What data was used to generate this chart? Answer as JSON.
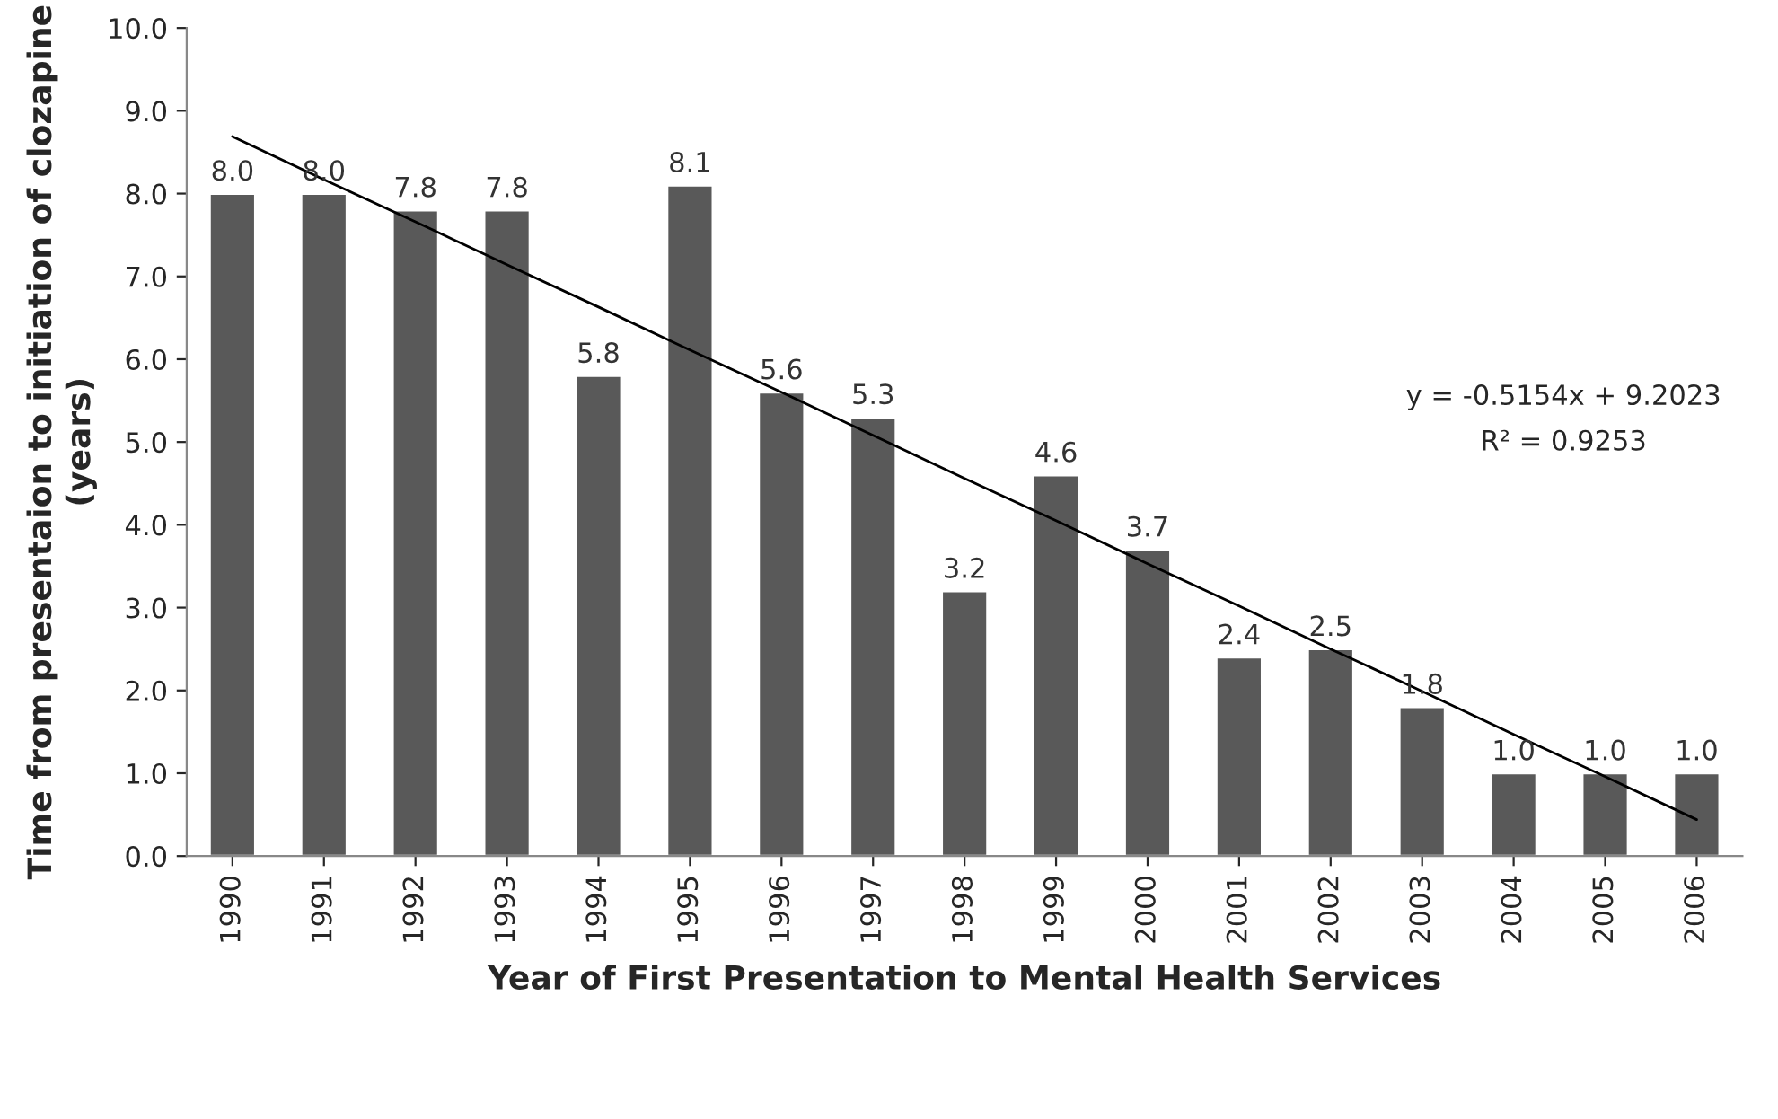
{
  "chart_data": {
    "type": "bar",
    "xlabel": "Year of First Presentation to Mental Health Services",
    "ylabel": "Time from presentaion to initiation of clozapine\n(years)",
    "categories": [
      "1990",
      "1991",
      "1992",
      "1993",
      "1994",
      "1995",
      "1996",
      "1997",
      "1998",
      "1999",
      "2000",
      "2001",
      "2002",
      "2003",
      "2004",
      "2005",
      "2006"
    ],
    "series": [
      {
        "color": "#595959",
        "values": [
          8.0,
          8.0,
          7.8,
          7.8,
          5.8,
          8.1,
          5.6,
          5.3,
          3.2,
          4.6,
          3.7,
          2.4,
          2.5,
          1.8,
          1.0,
          1.0,
          1.0
        ],
        "value_labels": [
          "8.0",
          "8.0",
          "7.8",
          "7.8",
          "5.8",
          "8.1",
          "5.6",
          "5.3",
          "3.2",
          "4.6",
          "3.7",
          "2.4",
          "2.5",
          "1.8",
          "1.0",
          "1.0",
          "1.0"
        ]
      },
      {
        "type": "line",
        "color": "#000000",
        "values": [
          8.69,
          8.17,
          7.66,
          7.14,
          6.63,
          6.11,
          5.6,
          5.08,
          4.56,
          4.05,
          3.53,
          3.02,
          2.5,
          1.99,
          1.47,
          0.96,
          0.44
        ]
      }
    ],
    "ylim": [
      0,
      10
    ],
    "yticks": [
      {
        "value": 0,
        "label": "0.0"
      },
      {
        "value": 1,
        "label": "1.0"
      },
      {
        "value": 2,
        "label": "2.0"
      },
      {
        "value": 3,
        "label": "3.0"
      },
      {
        "value": 4,
        "label": "4.0"
      },
      {
        "value": 5,
        "label": "5.0"
      },
      {
        "value": 6,
        "label": "6.0"
      },
      {
        "value": 7,
        "label": "7.0"
      },
      {
        "value": 8,
        "label": "8.0"
      },
      {
        "value": 9,
        "label": "9.0"
      },
      {
        "value": 10,
        "label": "10.0"
      }
    ],
    "annotations": [
      "y = -0.5154x + 9.2023",
      "R² = 0.9253"
    ],
    "grid": false
  }
}
